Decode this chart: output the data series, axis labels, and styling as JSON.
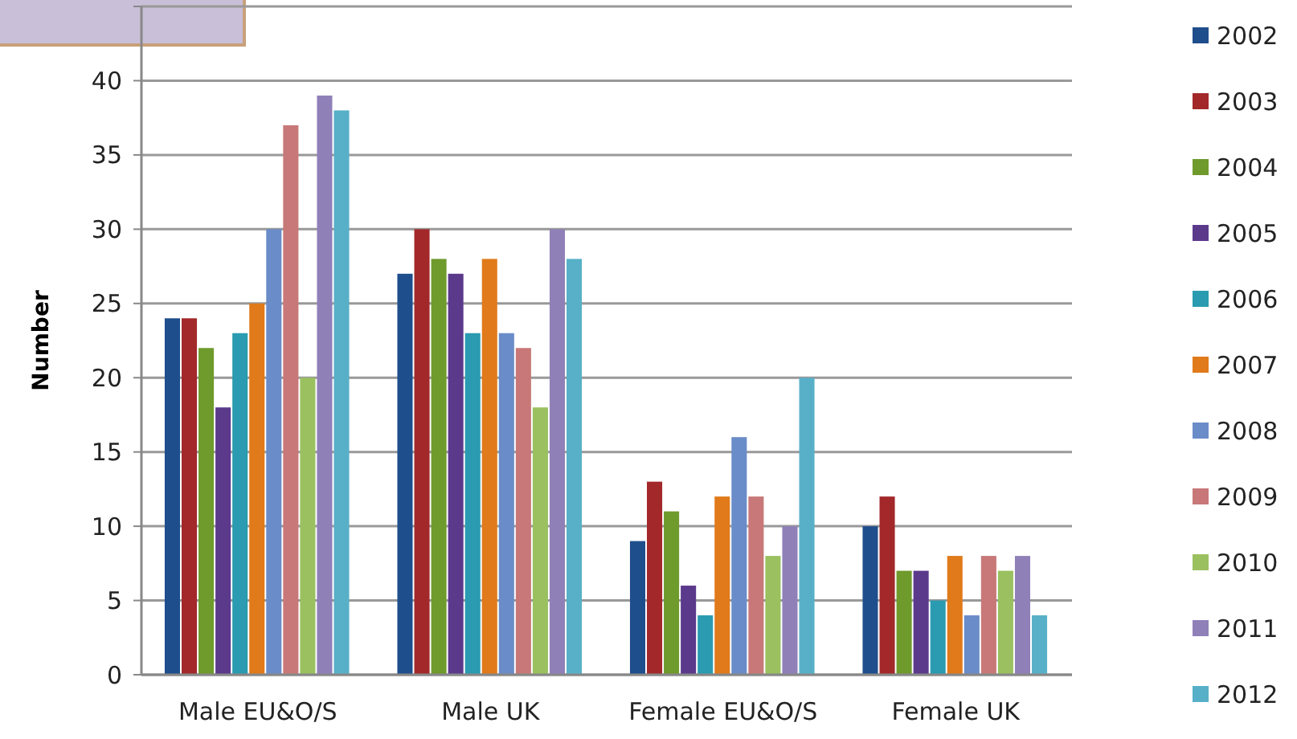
{
  "chart_data": {
    "type": "bar",
    "ylabel": "Number",
    "categories": [
      "Male EU&O/S",
      "Male UK",
      "Female EU&O/S",
      "Female UK"
    ],
    "series": [
      {
        "name": "2002",
        "color": "#1f4e8c",
        "values": [
          24,
          27,
          9,
          10
        ]
      },
      {
        "name": "2003",
        "color": "#a3282a",
        "values": [
          24,
          30,
          13,
          12
        ]
      },
      {
        "name": "2004",
        "color": "#6f9a2c",
        "values": [
          22,
          28,
          11,
          7
        ]
      },
      {
        "name": "2005",
        "color": "#5b3a8c",
        "values": [
          18,
          27,
          6,
          7
        ]
      },
      {
        "name": "2006",
        "color": "#2a9bb0",
        "values": [
          23,
          23,
          4,
          5
        ]
      },
      {
        "name": "2007",
        "color": "#e07a1a",
        "values": [
          25,
          28,
          12,
          8
        ]
      },
      {
        "name": "2008",
        "color": "#6a8cc8",
        "values": [
          30,
          23,
          16,
          4
        ]
      },
      {
        "name": "2009",
        "color": "#c87878",
        "values": [
          37,
          22,
          12,
          8
        ]
      },
      {
        "name": "2010",
        "color": "#9ac060",
        "values": [
          20,
          18,
          8,
          7
        ]
      },
      {
        "name": "2011",
        "color": "#9080b8",
        "values": [
          39,
          30,
          10,
          8
        ]
      },
      {
        "name": "2012",
        "color": "#58b0c8",
        "values": [
          38,
          28,
          20,
          4
        ]
      }
    ],
    "ylim": [
      0,
      45
    ],
    "yticks": [
      0,
      5,
      10,
      15,
      20,
      25,
      30,
      35,
      40,
      {
        "value": 45,
        "label": null
      }
    ],
    "grid": "y",
    "legend": "right"
  }
}
